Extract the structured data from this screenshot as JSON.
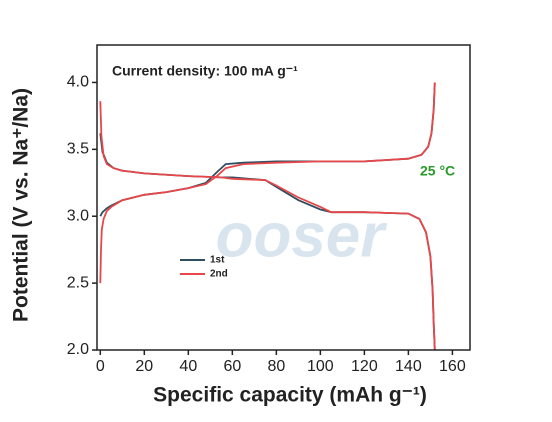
{
  "chart_data": {
    "type": "line",
    "annotation": "Current density: 100 mA g⁻¹",
    "temperature": "25 °C",
    "watermark": "ooser",
    "xlabel": "Specific capacity (mAh g⁻¹)",
    "ylabel": "Potential (V vs. Na⁺/Na)",
    "xlim": [
      -1.5,
      168
    ],
    "ylim": [
      2.0,
      4.28
    ],
    "xticks": [
      0,
      20,
      40,
      60,
      80,
      100,
      120,
      140,
      160
    ],
    "yticks": [
      {
        "value": 2.0,
        "label": "2.0"
      },
      2.5,
      {
        "value": 3.0,
        "label": "3.0"
      },
      3.5,
      {
        "value": 4.0,
        "label": "4.0"
      }
    ],
    "series": [
      {
        "name": "1st",
        "color": "#2f4f5f",
        "x": [
          0,
          1,
          3,
          5,
          10,
          20,
          30,
          40,
          48,
          53,
          57,
          65,
          80,
          100,
          120,
          140,
          146,
          149,
          150.5,
          151.5,
          152,
          null,
          0,
          1,
          3,
          6,
          10,
          20,
          40,
          55,
          60,
          75,
          80,
          90,
          100,
          105,
          120,
          140,
          145,
          148,
          150,
          151,
          151.5,
          152
        ],
        "values": [
          3.0,
          3.03,
          3.06,
          3.08,
          3.12,
          3.16,
          3.18,
          3.21,
          3.25,
          3.33,
          3.39,
          3.4,
          3.41,
          3.41,
          3.41,
          3.43,
          3.46,
          3.52,
          3.62,
          3.8,
          4.0,
          null,
          3.62,
          3.48,
          3.4,
          3.36,
          3.34,
          3.32,
          3.3,
          3.29,
          3.29,
          3.27,
          3.22,
          3.12,
          3.05,
          3.03,
          3.03,
          3.02,
          2.98,
          2.88,
          2.7,
          2.45,
          2.2,
          2.0
        ]
      },
      {
        "name": "2nd",
        "color": "#e8474a",
        "x": [
          0,
          0.3,
          0.7,
          1.5,
          3,
          5,
          10,
          20,
          30,
          40,
          48,
          53,
          57,
          65,
          80,
          100,
          120,
          140,
          146,
          149,
          150.5,
          151.5,
          152,
          null,
          0,
          0.5,
          1.5,
          3,
          6,
          10,
          20,
          40,
          55,
          60,
          75,
          80,
          90,
          100,
          105,
          120,
          140,
          145,
          148,
          150,
          151,
          151.5,
          152
        ],
        "values": [
          2.5,
          2.75,
          2.9,
          2.98,
          3.04,
          3.07,
          3.12,
          3.16,
          3.18,
          3.21,
          3.24,
          3.3,
          3.36,
          3.39,
          3.4,
          3.41,
          3.41,
          3.43,
          3.46,
          3.52,
          3.62,
          3.8,
          4.0,
          null,
          3.86,
          3.6,
          3.45,
          3.39,
          3.36,
          3.34,
          3.32,
          3.3,
          3.29,
          3.28,
          3.27,
          3.23,
          3.14,
          3.07,
          3.03,
          3.03,
          3.02,
          2.98,
          2.88,
          2.7,
          2.45,
          2.2,
          2.0
        ]
      }
    ]
  }
}
